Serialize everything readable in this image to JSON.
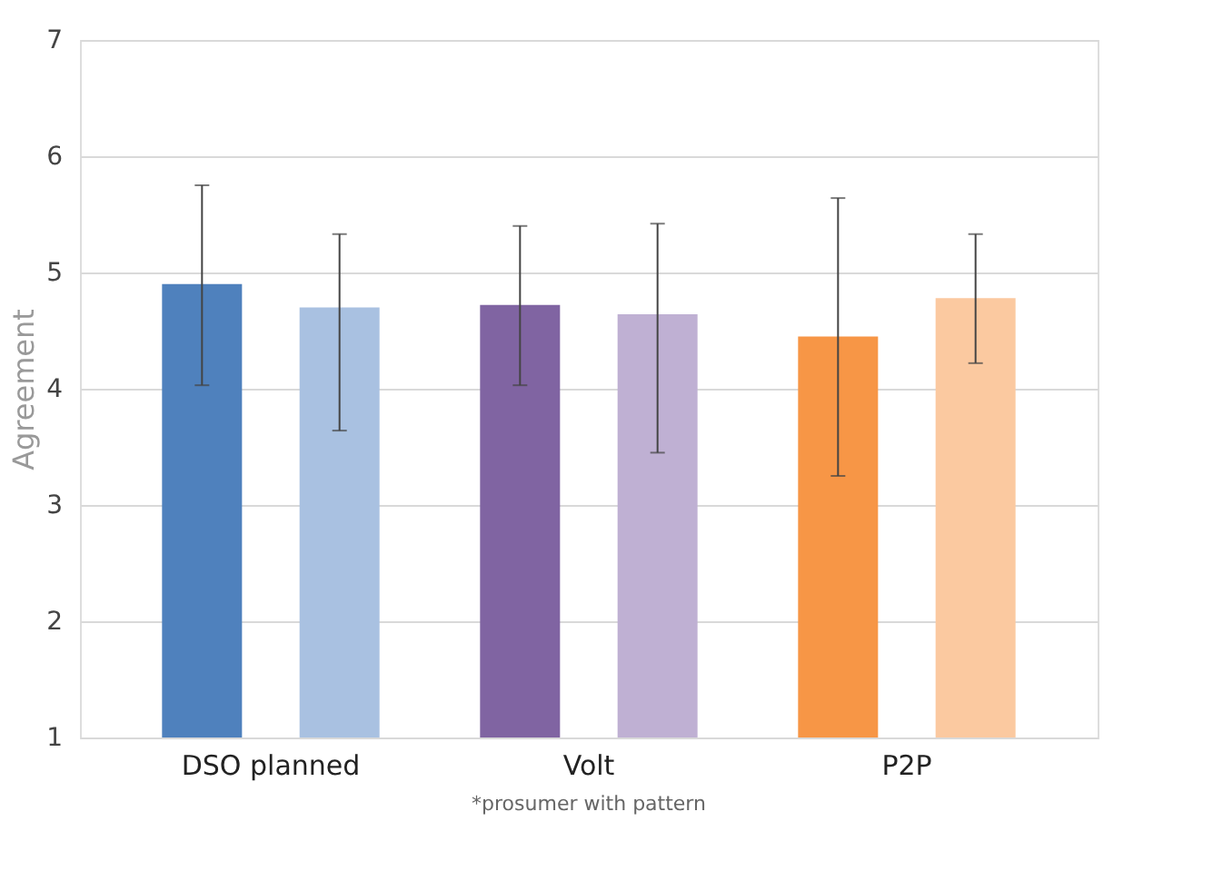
{
  "chart_data": {
    "type": "bar",
    "ylabel": "Agreement",
    "categories": [
      "DSO planned",
      "Volt",
      "P2P"
    ],
    "series": [
      {
        "colors": [
          "#4f81bd",
          "#8064a2",
          "#f79646"
        ],
        "values": [
          4.9,
          4.72,
          4.45
        ],
        "errors": [
          [
            4.03,
            5.75
          ],
          [
            4.03,
            5.4
          ],
          [
            3.25,
            5.64
          ]
        ]
      },
      {
        "colors": [
          "#a9c1e1",
          "#bfb0d3",
          "#fbc9a0"
        ],
        "values": [
          4.7,
          4.64,
          4.78
        ],
        "errors": [
          [
            3.64,
            5.33
          ],
          [
            3.45,
            5.42
          ],
          [
            4.22,
            5.33
          ]
        ]
      }
    ],
    "ylim": [
      1,
      7
    ],
    "yticks": [
      1,
      2,
      3,
      4,
      5,
      6,
      7
    ],
    "grid": "y",
    "annotations": [
      "*prosumer with pattern"
    ]
  }
}
